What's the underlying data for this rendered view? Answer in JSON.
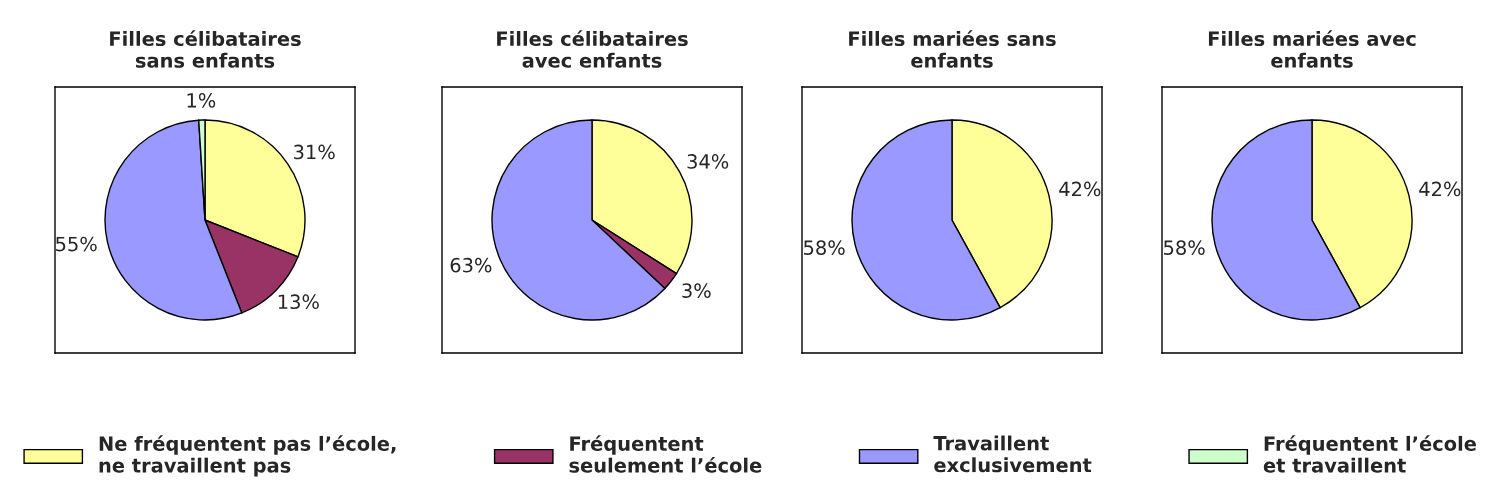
{
  "chart_data": [
    {
      "type": "pie",
      "title": "Filles célibataires\nsans enfants",
      "legend": "bottom",
      "categories": [
        "Ne fréquentent pas l’école,\nne travaillent pas",
        "Fréquentent\nseulement l’école",
        "Travaillent\nexclusivement",
        "Fréquentent l’école\net travaillent"
      ],
      "values": [
        31,
        13,
        55,
        1
      ],
      "colors": [
        "#ffff99",
        "#993366",
        "#9999ff",
        "#ccffcc"
      ],
      "value_labels": [
        "31%",
        "13%",
        "55%",
        "1%"
      ]
    },
    {
      "type": "pie",
      "title": "Filles célibataires\navec enfants",
      "categories": [
        null,
        null,
        null
      ],
      "values": [
        34,
        3,
        63
      ],
      "colors": [
        "#ffff99",
        "#993366",
        "#9999ff"
      ],
      "value_labels": [
        "34%",
        "3%",
        "63%"
      ]
    },
    {
      "type": "pie",
      "title": "Filles mariées sans\nenfants",
      "categories": [
        null,
        null
      ],
      "values": [
        42,
        58
      ],
      "colors": [
        "#ffff99",
        "#9999ff"
      ],
      "value_labels": [
        "42%",
        "58%"
      ]
    },
    {
      "type": "pie",
      "title": "Filles mariées avec\nenfants",
      "categories": [
        null,
        null
      ],
      "values": [
        42,
        58
      ],
      "colors": [
        "#ffff99",
        "#9999ff"
      ],
      "value_labels": [
        "42%",
        "58%"
      ]
    }
  ]
}
